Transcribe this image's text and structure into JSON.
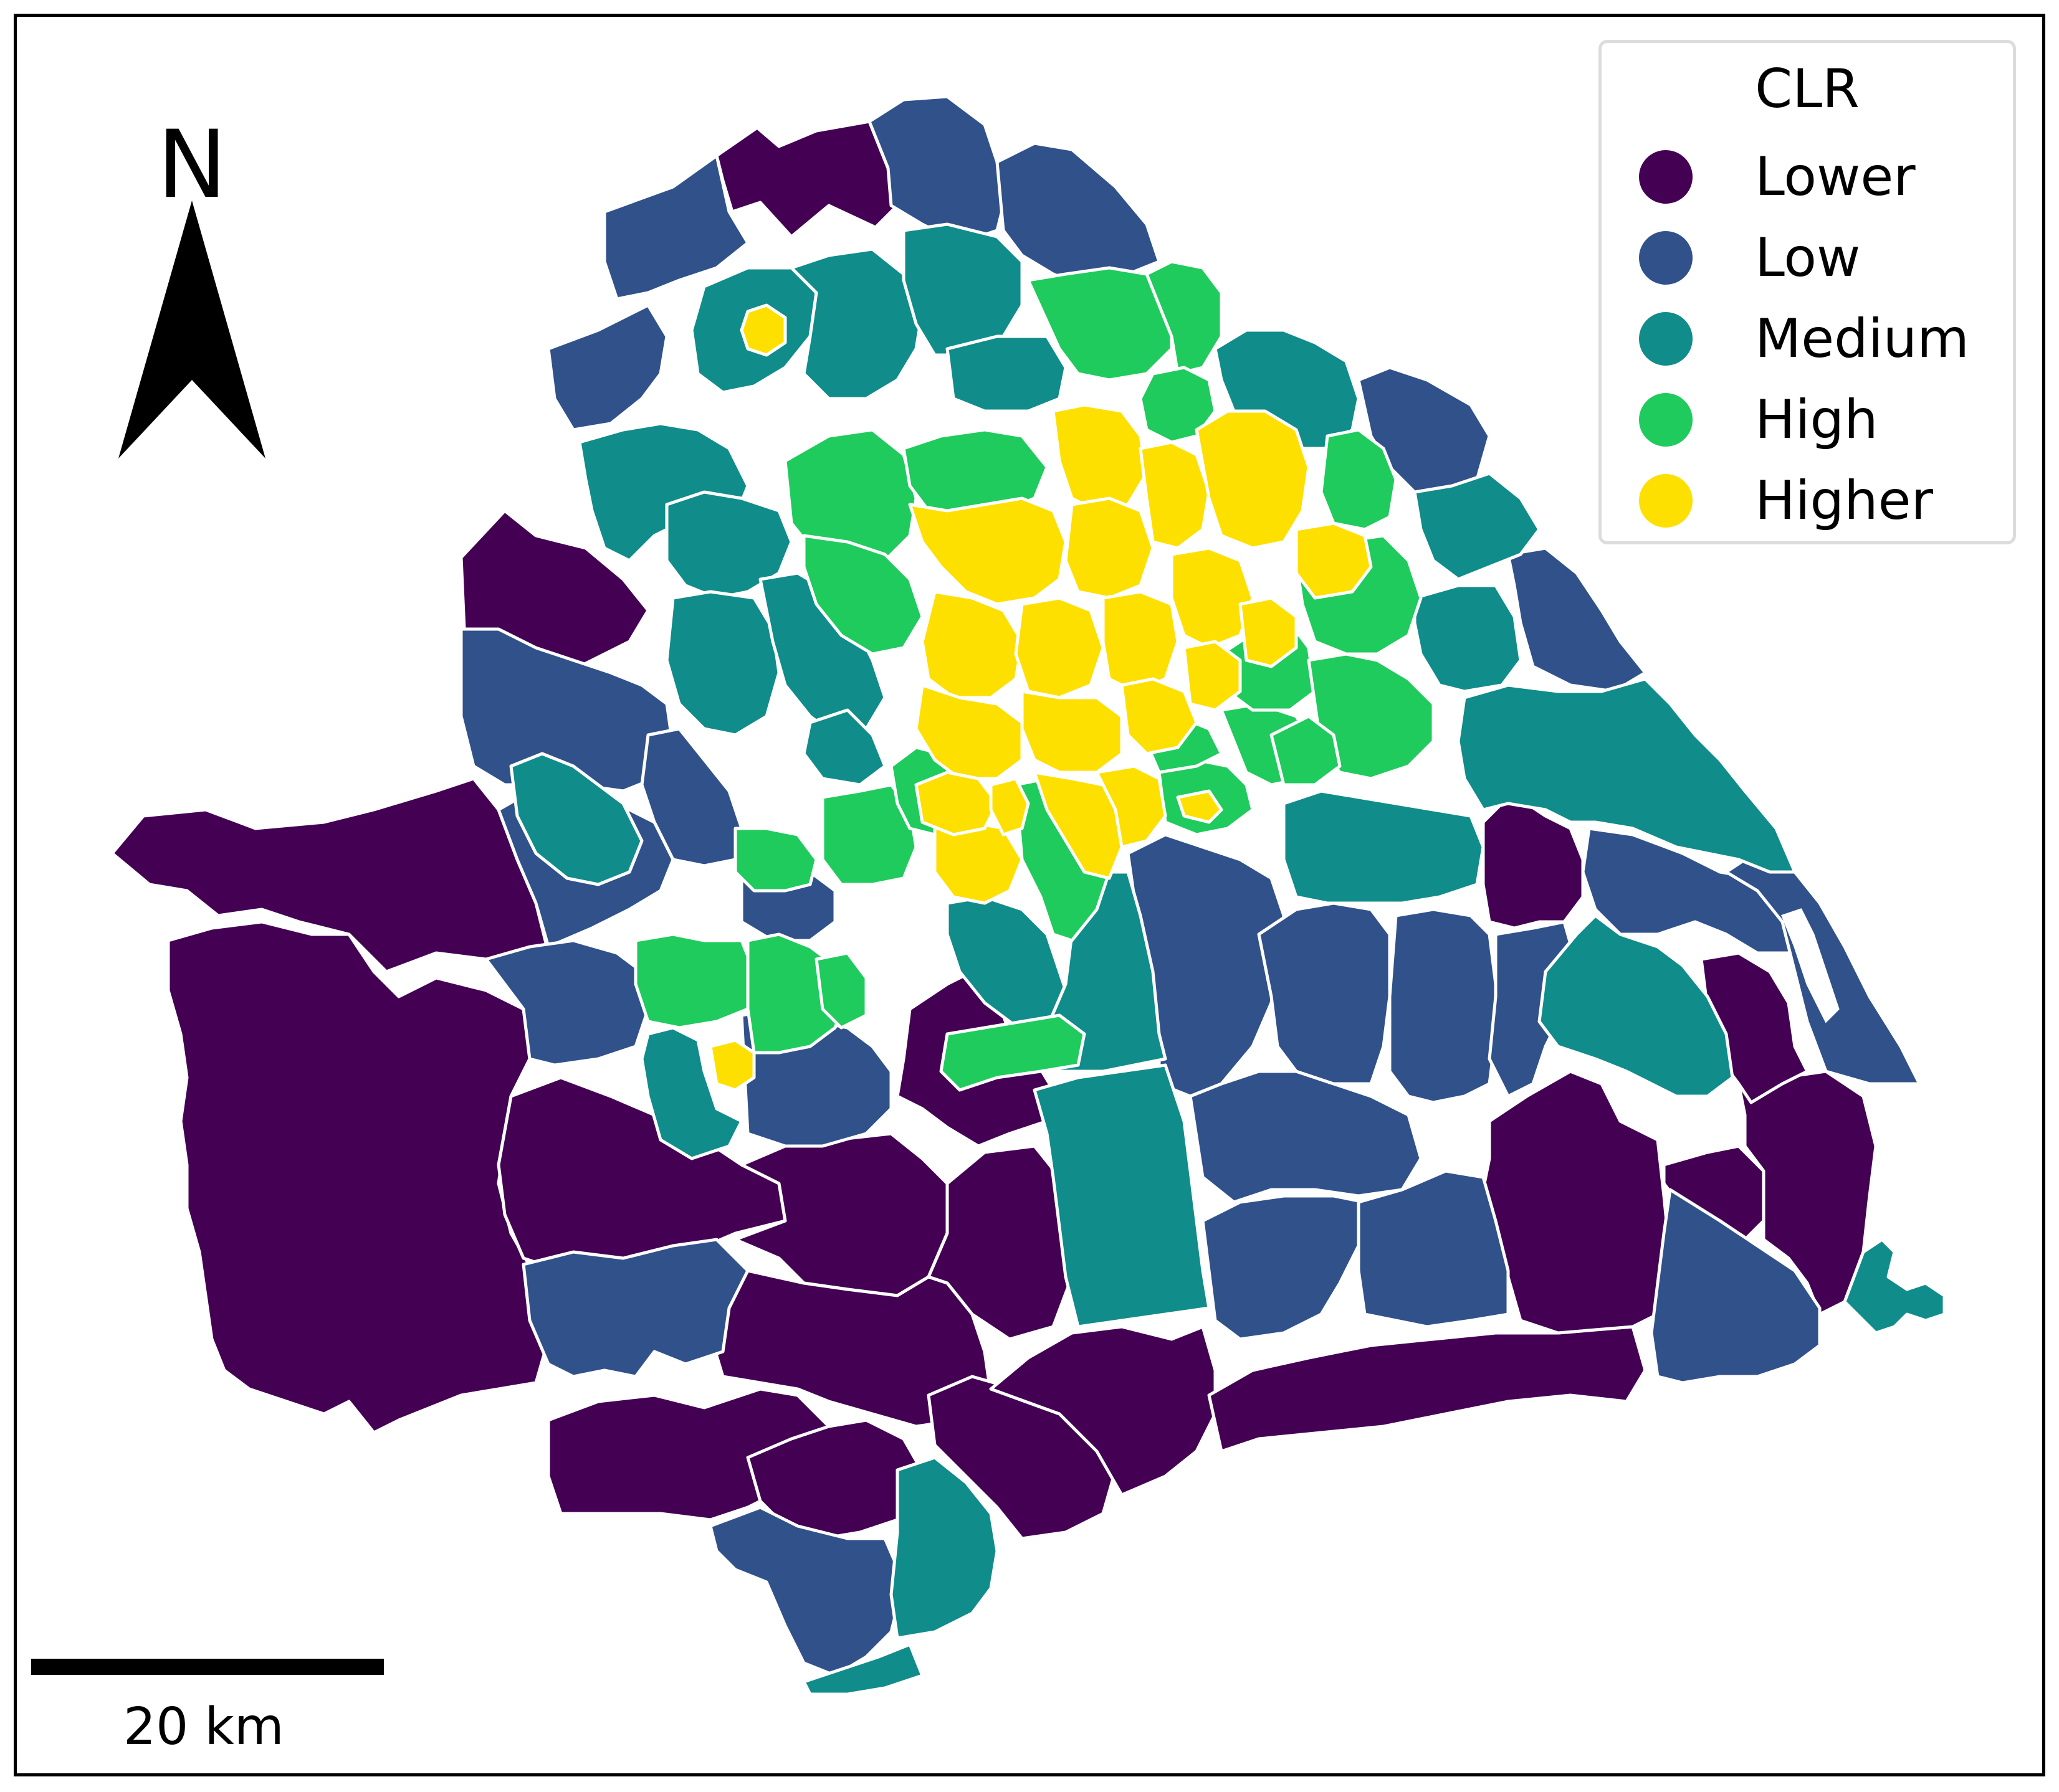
{
  "legend": {
    "title": "CLR",
    "items": [
      {
        "label": "Lower",
        "color": "#440154"
      },
      {
        "label": "Low",
        "color": "#31518a"
      },
      {
        "label": "Medium",
        "color": "#108c8a"
      },
      {
        "label": "High",
        "color": "#1fcb5c"
      },
      {
        "label": "Higher",
        "color": "#fde000"
      }
    ]
  },
  "north_arrow": {
    "label": "N"
  },
  "scale_bar": {
    "label": "20 km"
  },
  "colors": {
    "region_border": "#ffffff",
    "frame": "#000000"
  }
}
